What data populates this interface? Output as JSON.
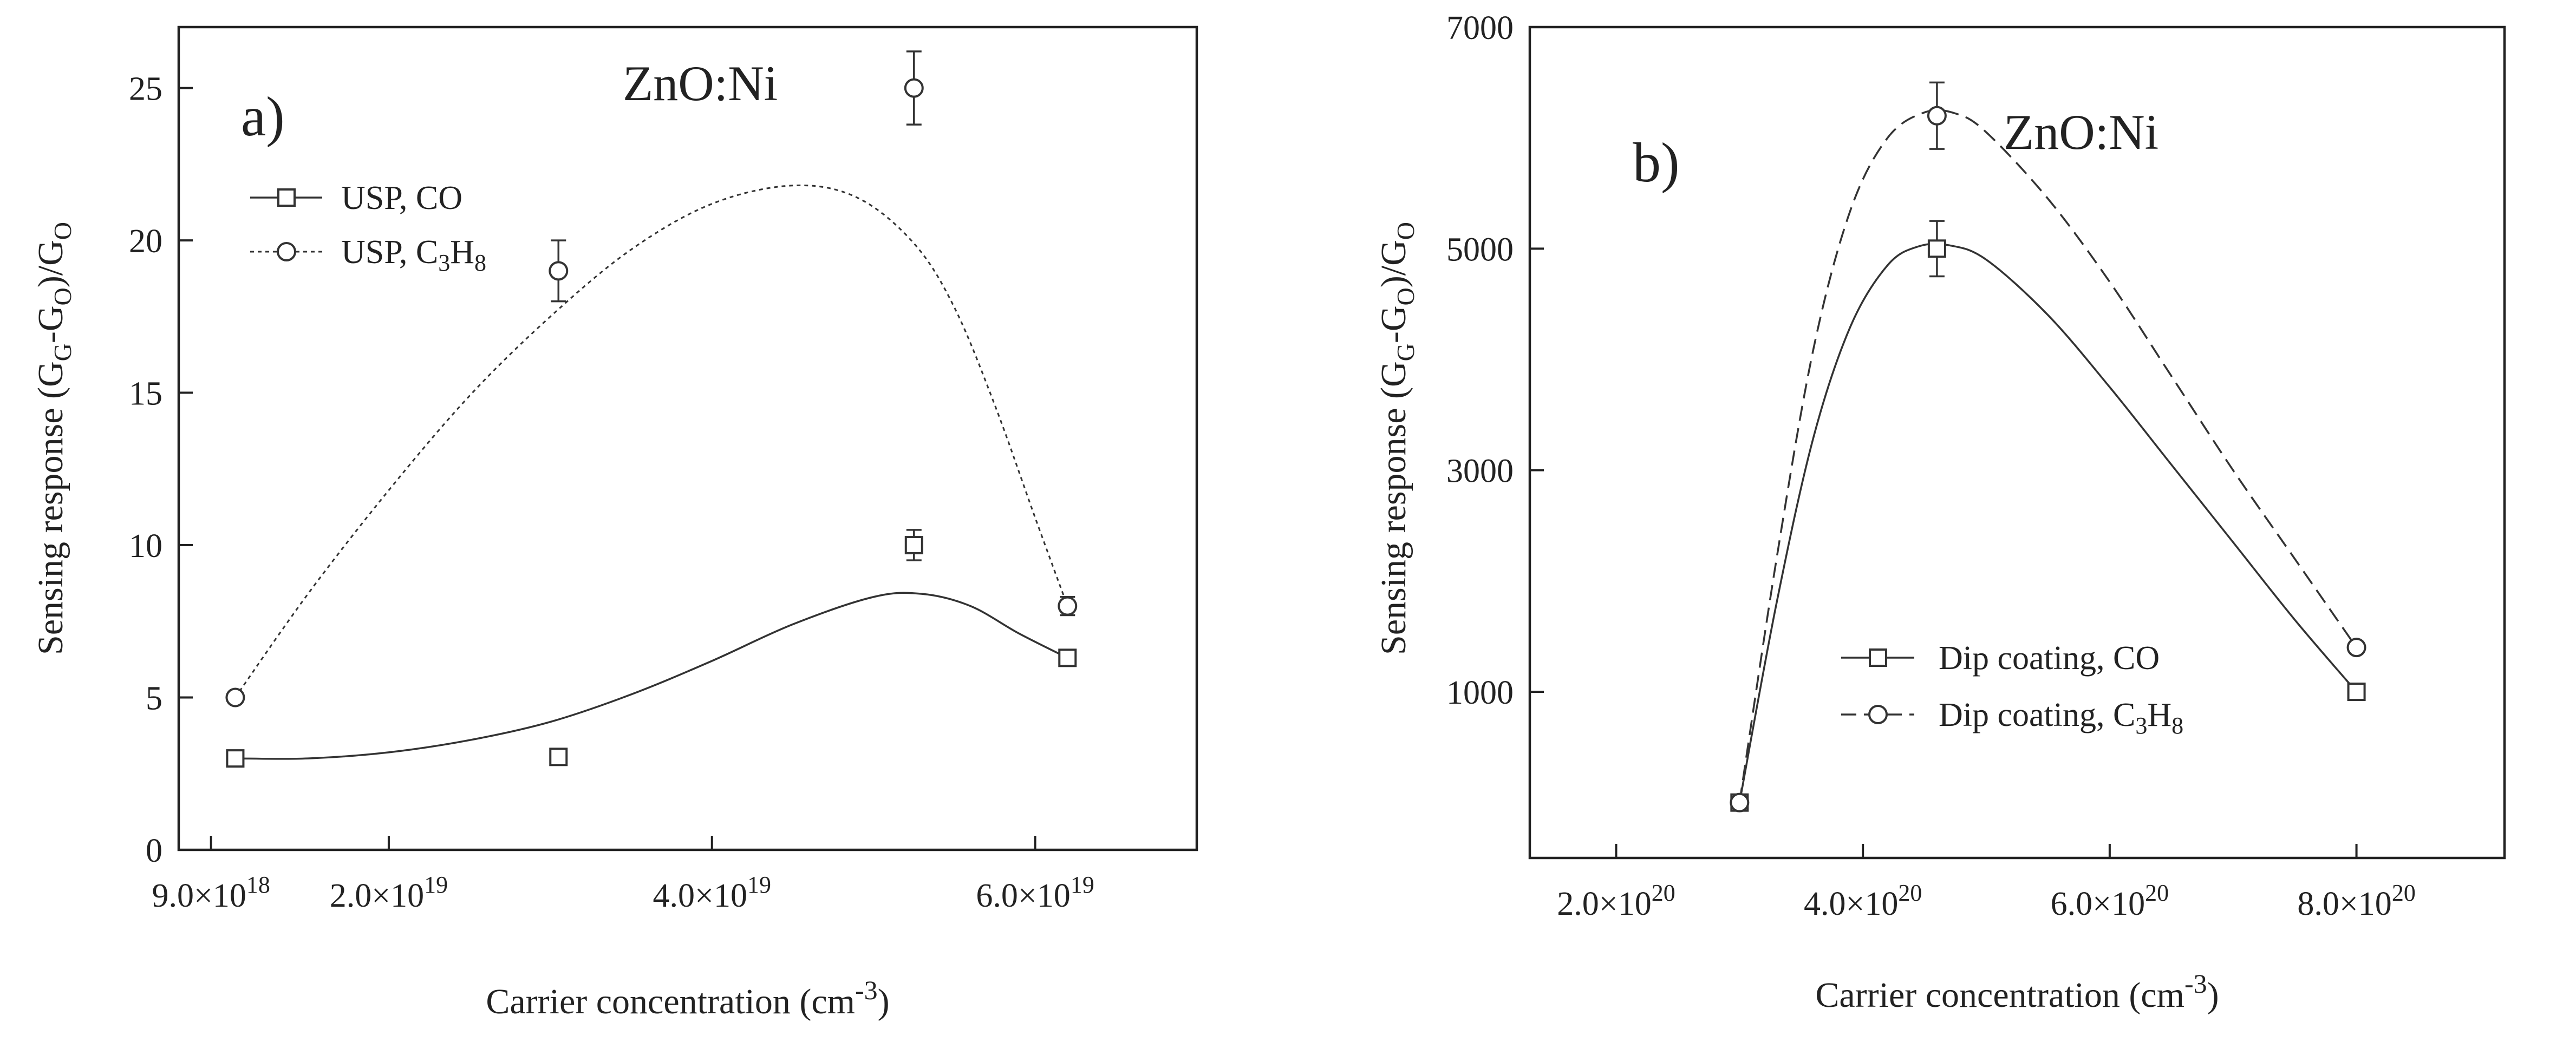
{
  "chart_data": [
    {
      "type": "scatter",
      "panel_label": "a)",
      "material": "ZnO:Ni",
      "xlabel": "Carrier concentration (cm",
      "xlabel_sup": "-3",
      "xlabel_close": ")",
      "ylabel_parts": {
        "a": "Sensing response (G",
        "s1": "G",
        "b": "-G",
        "s2": "O",
        "c": ")/G",
        "s3": "O"
      },
      "xlim": [
        7e+18,
        7e+19
      ],
      "ylim": [
        0,
        27
      ],
      "xticks": [
        {
          "v": 9e+18,
          "label": "9.0×10",
          "exp": "18"
        },
        {
          "v": 2e+19,
          "label": "2.0×10",
          "exp": "19"
        },
        {
          "v": 4e+19,
          "label": "4.0×10",
          "exp": "19"
        },
        {
          "v": 6e+19,
          "label": "6.0×10",
          "exp": "19"
        }
      ],
      "yticks": [
        0,
        5,
        10,
        15,
        20,
        25
      ],
      "legend_position": "top-left",
      "series": [
        {
          "name": "USP, CO",
          "legend_text": "USP, CO",
          "marker": "square",
          "line": "solid",
          "points": [
            {
              "x": 1.05e+19,
              "y": 3.0,
              "err": 0.15
            },
            {
              "x": 3.05e+19,
              "y": 3.05,
              "err": 0.15
            },
            {
              "x": 5.25e+19,
              "y": 10.0,
              "err": 0.5
            },
            {
              "x": 6.2e+19,
              "y": 6.3,
              "err": 0.2
            }
          ],
          "fit": [
            [
              1.05e+19,
              3.0
            ],
            [
              1.5e+19,
              3.0
            ],
            [
              2e+19,
              3.2
            ],
            [
              2.5e+19,
              3.6
            ],
            [
              3e+19,
              4.2
            ],
            [
              3.5e+19,
              5.1
            ],
            [
              4e+19,
              6.2
            ],
            [
              4.5e+19,
              7.4
            ],
            [
              5e+19,
              8.3
            ],
            [
              5.3e+19,
              8.4
            ],
            [
              5.6e+19,
              8.0
            ],
            [
              5.9e+19,
              7.1
            ],
            [
              6.2e+19,
              6.3
            ]
          ]
        },
        {
          "name": "USP, C3H8",
          "legend_text": "USP, C",
          "legend_sub1": "3",
          "legend_mid": "H",
          "legend_sub2": "8",
          "marker": "circle",
          "line": "dotted",
          "points": [
            {
              "x": 1.05e+19,
              "y": 5.0,
              "err": 0.15
            },
            {
              "x": 3.05e+19,
              "y": 19.0,
              "err": 1.0
            },
            {
              "x": 5.25e+19,
              "y": 25.0,
              "err": 1.2
            },
            {
              "x": 6.2e+19,
              "y": 8.0,
              "err": 0.3
            }
          ],
          "fit": [
            [
              1.05e+19,
              5.0
            ],
            [
              1.5e+19,
              8.4
            ],
            [
              2e+19,
              11.8
            ],
            [
              2.5e+19,
              14.9
            ],
            [
              3e+19,
              17.5
            ],
            [
              3.5e+19,
              19.7
            ],
            [
              4e+19,
              21.2
            ],
            [
              4.5e+19,
              21.8
            ],
            [
              4.9e+19,
              21.4
            ],
            [
              5.25e+19,
              19.9
            ],
            [
              5.5e+19,
              17.8
            ],
            [
              5.75e+19,
              14.6
            ],
            [
              6e+19,
              10.9
            ],
            [
              6.2e+19,
              8.0
            ]
          ]
        }
      ]
    },
    {
      "type": "scatter",
      "panel_label": "b)",
      "material": "ZnO:Ni",
      "xlabel": "Carrier concentration (cm",
      "xlabel_sup": "-3",
      "xlabel_close": ")",
      "ylabel_parts": {
        "a": "Sensing response (G",
        "s1": "G",
        "b": "-G",
        "s2": "O",
        "c": ")/G",
        "s3": "O"
      },
      "xlim": [
        1.3e+20,
        9.2e+20
      ],
      "ylim": [
        -500,
        7000
      ],
      "xticks": [
        {
          "v": 2e+20,
          "label": "2.0×10",
          "exp": "20"
        },
        {
          "v": 4e+20,
          "label": "4.0×10",
          "exp": "20"
        },
        {
          "v": 6e+20,
          "label": "6.0×10",
          "exp": "20"
        },
        {
          "v": 8e+20,
          "label": "8.0×10",
          "exp": "20"
        }
      ],
      "yticks": [
        1000,
        3000,
        5000,
        7000
      ],
      "legend_position": "bottom-left",
      "series": [
        {
          "name": "Dip coating, CO",
          "legend_text": "Dip coating, CO",
          "marker": "square",
          "line": "solid",
          "points": [
            {
              "x": 3e+20,
              "y": 0,
              "err": 0
            },
            {
              "x": 4.6e+20,
              "y": 5000,
              "err": 250
            },
            {
              "x": 8e+20,
              "y": 1000,
              "err": 0
            }
          ],
          "fit": [
            [
              3e+20,
              0
            ],
            [
              3.3e+20,
              1800
            ],
            [
              3.6e+20,
              3300
            ],
            [
              3.9e+20,
              4300
            ],
            [
              4.2e+20,
              4850
            ],
            [
              4.45e+20,
              5020
            ],
            [
              4.7e+20,
              5030
            ],
            [
              5e+20,
              4900
            ],
            [
              5.5e+20,
              4400
            ],
            [
              6e+20,
              3750
            ],
            [
              6.5e+20,
              3050
            ],
            [
              7e+20,
              2350
            ],
            [
              7.5e+20,
              1650
            ],
            [
              8e+20,
              1000
            ]
          ]
        },
        {
          "name": "Dip coating, C3H8",
          "legend_text": "Dip coating, C",
          "legend_sub1": "3",
          "legend_mid": "H",
          "legend_sub2": "8",
          "marker": "circle",
          "line": "dashed",
          "points": [
            {
              "x": 3e+20,
              "y": 0,
              "err": 0
            },
            {
              "x": 4.6e+20,
              "y": 6200,
              "err": 300
            },
            {
              "x": 8e+20,
              "y": 1400,
              "err": 0
            }
          ],
          "fit": [
            [
              3e+20,
              0
            ],
            [
              3.3e+20,
              2200
            ],
            [
              3.6e+20,
              4100
            ],
            [
              3.9e+20,
              5350
            ],
            [
              4.2e+20,
              6000
            ],
            [
              4.5e+20,
              6230
            ],
            [
              4.75e+20,
              6220
            ],
            [
              5e+20,
              6050
            ],
            [
              5.5e+20,
              5450
            ],
            [
              6e+20,
              4700
            ],
            [
              6.5e+20,
              3850
            ],
            [
              7e+20,
              3000
            ],
            [
              7.5e+20,
              2200
            ],
            [
              8e+20,
              1400
            ]
          ]
        }
      ]
    }
  ]
}
